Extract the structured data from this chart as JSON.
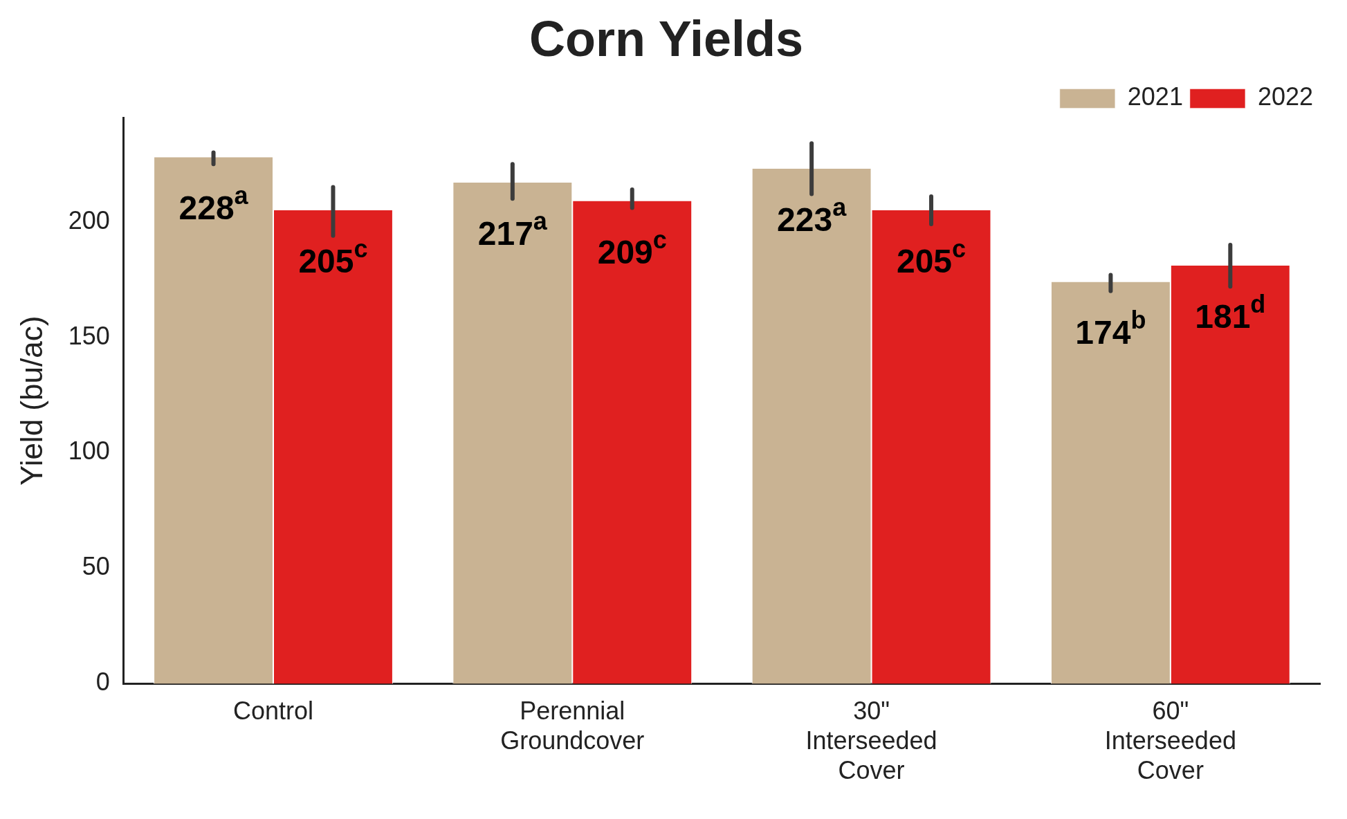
{
  "chart_data": {
    "type": "bar",
    "title": "Corn Yields",
    "ylabel": "Yield (bu/ac)",
    "categories": [
      "Control",
      "Perennial Groundcover",
      "30\" Interseeded Cover",
      "60\" Interseeded Cover"
    ],
    "series": [
      {
        "name": "2021",
        "color": "#c9b393",
        "values": [
          228,
          217,
          223,
          174
        ],
        "errors": [
          [
            225,
            230
          ],
          [
            210,
            225
          ],
          [
            212,
            234
          ],
          [
            170,
            177
          ]
        ],
        "value_labels": [
          "228$^{a}$",
          "217$^{a}$",
          "223$^{a}$",
          "174$^{b}$"
        ]
      },
      {
        "name": "2022",
        "color": "#e02020",
        "values": [
          205,
          209,
          205,
          181
        ],
        "errors": [
          [
            194,
            215
          ],
          [
            206,
            214
          ],
          [
            199,
            211
          ],
          [
            172,
            190
          ]
        ],
        "value_labels": [
          "205$^{c}$",
          "209$^{c}$",
          "205$^{c}$",
          "181$^{d}$"
        ]
      }
    ],
    "ylim": [
      0,
      245
    ],
    "yticks": [
      0,
      50,
      100,
      150,
      200
    ],
    "grid": false,
    "legend": "top right"
  }
}
